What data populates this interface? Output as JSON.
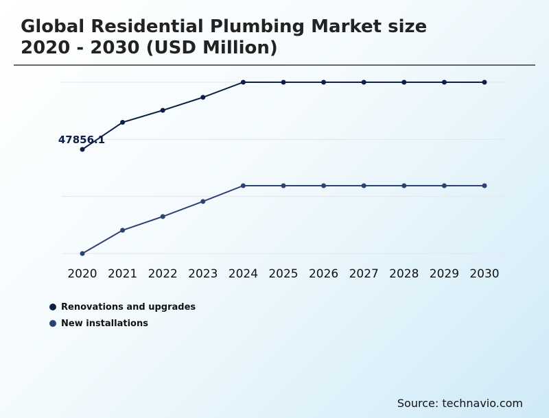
{
  "header": {
    "title_line1": "Global Residential Plumbing Market size",
    "title_line2": "2020 - 2030 (USD Million)"
  },
  "source": "Source: technavio.com",
  "chart_data": {
    "type": "line",
    "title": "Global Residential Plumbing Market size 2020 - 2030 (USD Million)",
    "categories": [
      "2020",
      "2021",
      "2022",
      "2023",
      "2024",
      "2025",
      "2026",
      "2027",
      "2028",
      "2029",
      "2030"
    ],
    "series": [
      {
        "name": "Renovations and upgrades",
        "color": "#0d1f45",
        "values": [
          47856.1,
          60290,
          65800,
          71780,
          78710,
          78710,
          78710,
          78710,
          78710,
          78710,
          78710
        ]
      },
      {
        "name": "New installations",
        "color": "#2e4272",
        "values": [
          0,
          10700,
          17000,
          23930,
          31170,
          31170,
          31170,
          31170,
          31170,
          31170,
          31170
        ]
      }
    ],
    "data_labels": [
      {
        "series": 0,
        "index": 0,
        "text": "47856.1"
      }
    ],
    "ylim": [
      0,
      78710
    ],
    "grid": true,
    "legend_position": "bottom-left"
  }
}
